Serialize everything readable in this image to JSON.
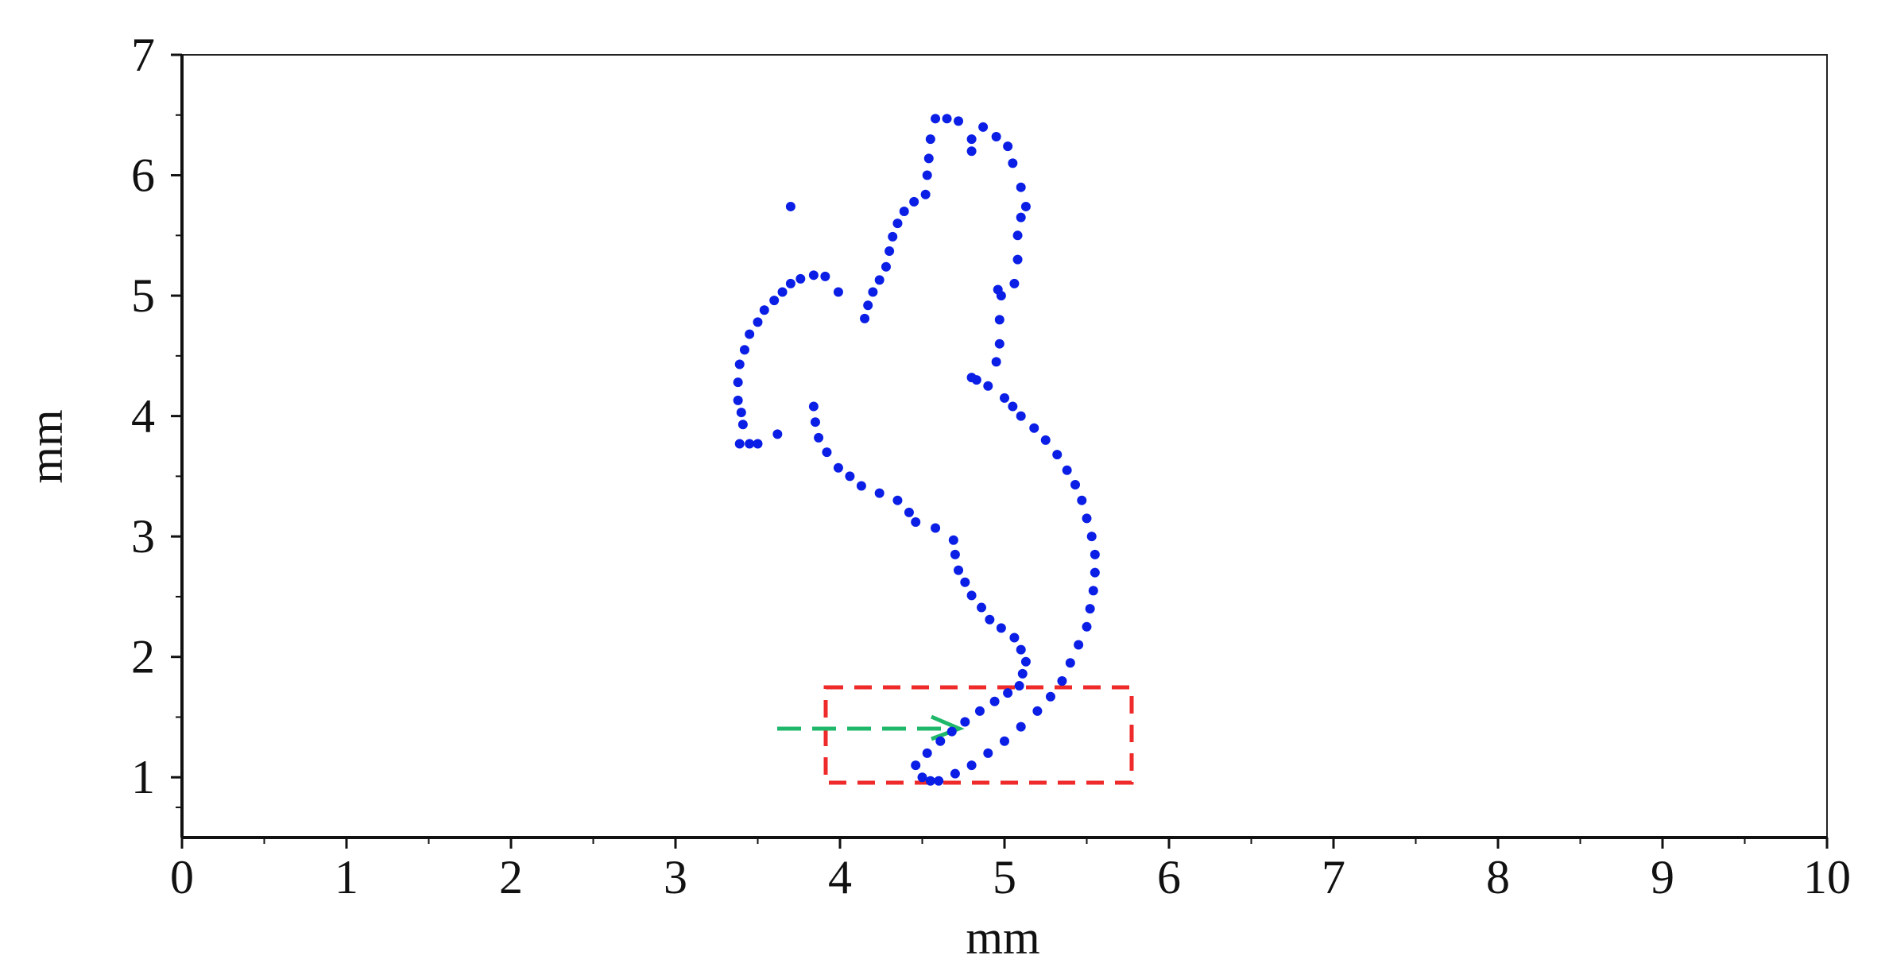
{
  "chart_data": {
    "type": "scatter",
    "xlabel": "mm",
    "ylabel": "mm",
    "color": "#0a1ee6",
    "xlim": [
      0,
      10
    ],
    "xticks": [
      0,
      1,
      2,
      3,
      4,
      5,
      6,
      7,
      8,
      9,
      10
    ],
    "ylim": [
      0.5,
      7
    ],
    "yticks": [
      1,
      2,
      3,
      4,
      5,
      6,
      7
    ],
    "x": [
      4.5,
      4.55,
      4.6,
      4.7,
      4.8,
      4.9,
      5.0,
      5.1,
      5.2,
      5.28,
      5.35,
      5.4,
      5.45,
      5.5,
      5.52,
      5.54,
      5.55,
      5.55,
      5.53,
      5.5,
      5.47,
      5.43,
      5.38,
      5.32,
      5.25,
      5.18,
      5.1,
      5.05,
      5.0,
      4.9,
      4.83,
      4.8,
      4.95,
      4.97,
      4.97,
      4.98,
      4.96,
      5.06,
      5.08,
      5.08,
      5.1,
      5.13,
      5.1,
      5.05,
      5.02,
      4.95,
      4.87,
      4.8,
      4.8,
      4.72,
      4.65,
      4.58,
      4.55,
      4.54,
      4.53,
      4.52,
      4.45,
      4.39,
      4.35,
      4.32,
      4.3,
      4.28,
      4.24,
      4.2,
      4.17,
      4.15,
      3.7,
      3.99,
      3.91,
      3.84,
      3.76,
      3.7,
      3.65,
      3.6,
      3.54,
      3.5,
      3.45,
      3.42,
      3.39,
      3.38,
      3.38,
      3.4,
      3.41,
      3.39,
      3.45,
      3.5,
      3.62,
      3.84,
      3.85,
      3.87,
      3.92,
      3.99,
      4.06,
      4.13,
      4.24,
      4.35,
      4.42,
      4.46,
      4.58,
      4.69,
      4.7,
      4.72,
      4.76,
      4.8,
      4.86,
      4.91,
      4.98,
      5.06,
      5.1,
      5.13,
      5.11,
      5.09,
      5.02,
      4.94,
      4.85,
      4.76,
      4.68,
      4.61,
      4.53,
      4.46
    ],
    "values": [
      1.0,
      0.97,
      0.97,
      1.03,
      1.1,
      1.2,
      1.3,
      1.42,
      1.55,
      1.67,
      1.8,
      1.95,
      2.1,
      2.25,
      2.4,
      2.55,
      2.7,
      2.85,
      3.0,
      3.15,
      3.3,
      3.43,
      3.55,
      3.68,
      3.8,
      3.9,
      4.0,
      4.08,
      4.15,
      4.25,
      4.3,
      4.32,
      4.45,
      4.6,
      4.8,
      5.0,
      5.05,
      5.1,
      5.3,
      5.5,
      5.65,
      5.74,
      5.9,
      6.1,
      6.24,
      6.32,
      6.4,
      6.3,
      6.2,
      6.45,
      6.47,
      6.47,
      6.3,
      6.14,
      6.0,
      5.84,
      5.78,
      5.7,
      5.6,
      5.49,
      5.37,
      5.24,
      5.13,
      5.03,
      4.92,
      4.81,
      5.74,
      5.03,
      5.16,
      5.17,
      5.14,
      5.1,
      5.03,
      4.96,
      4.88,
      4.78,
      4.68,
      4.55,
      4.43,
      4.28,
      4.13,
      4.03,
      3.93,
      3.77,
      3.77,
      3.77,
      3.85,
      4.08,
      3.95,
      3.82,
      3.7,
      3.57,
      3.5,
      3.42,
      3.36,
      3.3,
      3.2,
      3.12,
      3.07,
      2.97,
      2.85,
      2.72,
      2.62,
      2.51,
      2.41,
      2.31,
      2.24,
      2.16,
      2.06,
      1.96,
      1.86,
      1.76,
      1.7,
      1.63,
      1.55,
      1.46,
      1.38,
      1.3,
      1.2,
      1.1
    ]
  }
}
